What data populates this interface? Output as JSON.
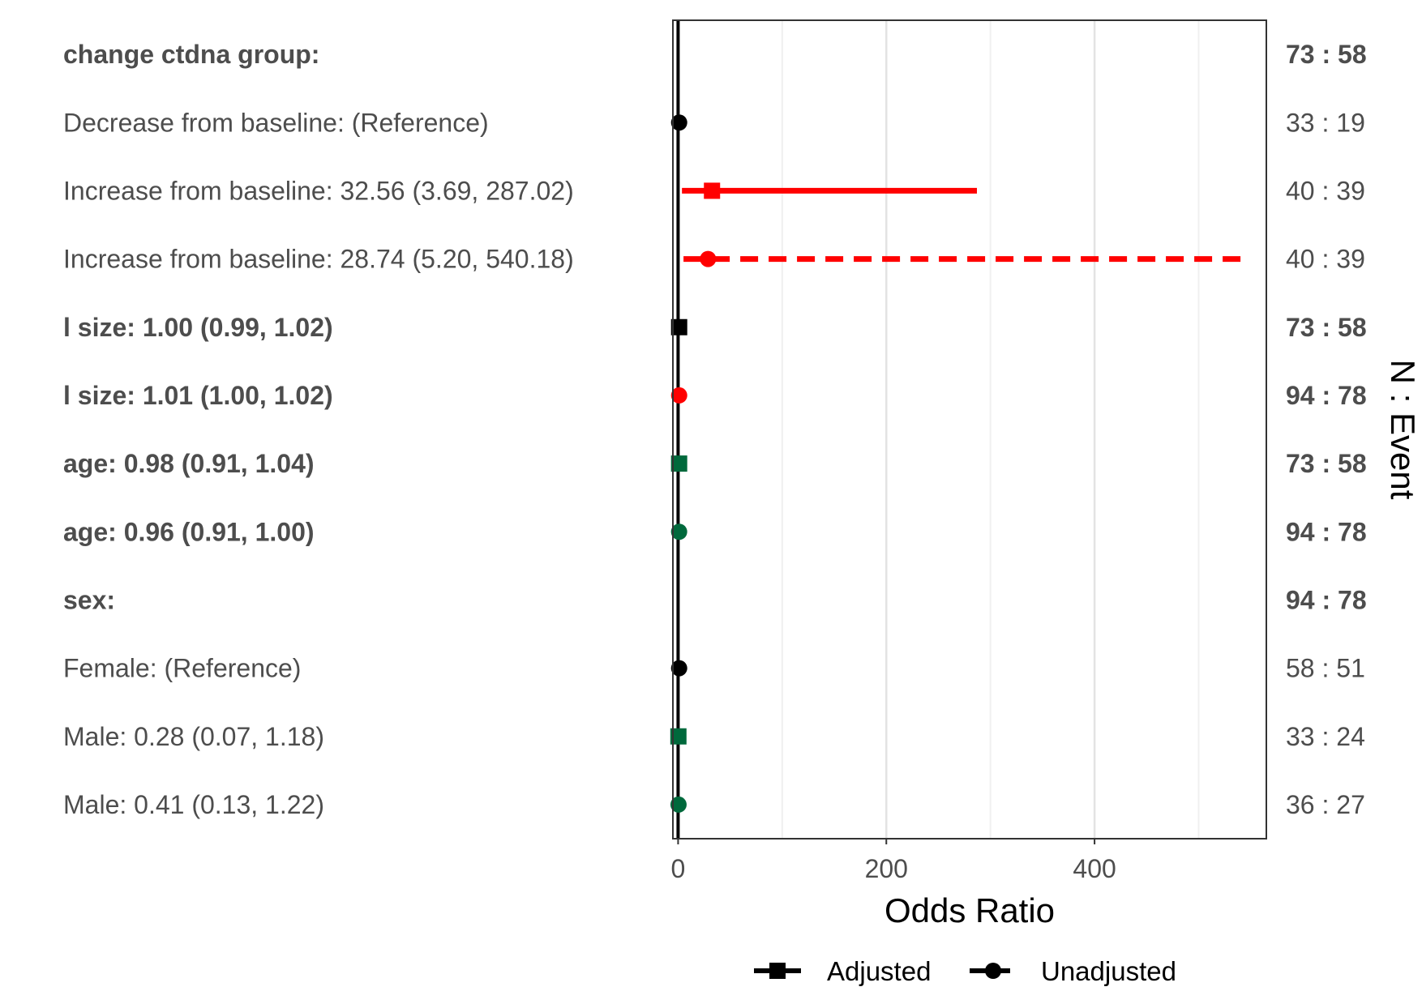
{
  "chart_data": {
    "type": "forest",
    "xlabel": "Odds Ratio",
    "right_axis_label": "N : Event",
    "xlim": [
      -5,
      565
    ],
    "x_ticks": [
      0,
      200,
      400
    ],
    "x_tick_labels": [
      "0",
      "200",
      "400"
    ],
    "minor_gridlines": [
      100,
      300,
      500
    ],
    "reference_line": 0,
    "legend": {
      "position": "bottom",
      "items": [
        {
          "label": "Adjusted",
          "shape": "square",
          "line": "solid"
        },
        {
          "label": "Unadjusted",
          "shape": "circle",
          "line": "dashed"
        }
      ]
    },
    "colors": {
      "black": "#000000",
      "red": "#ff0000",
      "green": "#00693c"
    },
    "rows": [
      {
        "label": "change ctdna group:",
        "bold": true,
        "n_event": "73 : 58",
        "estimate": null,
        "lower": null,
        "upper": null,
        "group": null,
        "color": null
      },
      {
        "label": "Decrease from baseline: (Reference)",
        "bold": false,
        "n_event": "33 : 19",
        "estimate": 1,
        "lower": null,
        "upper": null,
        "group": "Unadjusted",
        "color": "black"
      },
      {
        "label": "Increase from baseline: 32.56 (3.69, 287.02)",
        "bold": false,
        "n_event": "40 : 39",
        "estimate": 32.56,
        "lower": 3.69,
        "upper": 287.02,
        "group": "Adjusted",
        "color": "red"
      },
      {
        "label": "Increase from baseline: 28.74 (5.20, 540.18)",
        "bold": false,
        "n_event": "40 : 39",
        "estimate": 28.74,
        "lower": 5.2,
        "upper": 540.18,
        "group": "Unadjusted",
        "color": "red"
      },
      {
        "label": "l size: 1.00 (0.99, 1.02)",
        "bold": true,
        "n_event": "73 : 58",
        "estimate": 1.0,
        "lower": 0.99,
        "upper": 1.02,
        "group": "Adjusted",
        "color": "black"
      },
      {
        "label": "l size: 1.01 (1.00, 1.02)",
        "bold": true,
        "n_event": "94 : 78",
        "estimate": 1.01,
        "lower": 1.0,
        "upper": 1.02,
        "group": "Unadjusted",
        "color": "red"
      },
      {
        "label": "age: 0.98 (0.91, 1.04)",
        "bold": true,
        "n_event": "73 : 58",
        "estimate": 0.98,
        "lower": 0.91,
        "upper": 1.04,
        "group": "Adjusted",
        "color": "green"
      },
      {
        "label": "age: 0.96 (0.91, 1.00)",
        "bold": true,
        "n_event": "94 : 78",
        "estimate": 0.96,
        "lower": 0.91,
        "upper": 1.0,
        "group": "Unadjusted",
        "color": "green"
      },
      {
        "label": "sex:",
        "bold": true,
        "n_event": "94 : 78",
        "estimate": null,
        "lower": null,
        "upper": null,
        "group": null,
        "color": null
      },
      {
        "label": "Female: (Reference)",
        "bold": false,
        "n_event": "58 : 51",
        "estimate": 1,
        "lower": null,
        "upper": null,
        "group": "Unadjusted",
        "color": "black"
      },
      {
        "label": "Male: 0.28 (0.07, 1.18)",
        "bold": false,
        "n_event": "33 : 24",
        "estimate": 0.28,
        "lower": 0.07,
        "upper": 1.18,
        "group": "Adjusted",
        "color": "green"
      },
      {
        "label": "Male: 0.41 (0.13, 1.22)",
        "bold": false,
        "n_event": "36 : 27",
        "estimate": 0.41,
        "lower": 0.13,
        "upper": 1.22,
        "group": "Unadjusted",
        "color": "green"
      }
    ]
  }
}
